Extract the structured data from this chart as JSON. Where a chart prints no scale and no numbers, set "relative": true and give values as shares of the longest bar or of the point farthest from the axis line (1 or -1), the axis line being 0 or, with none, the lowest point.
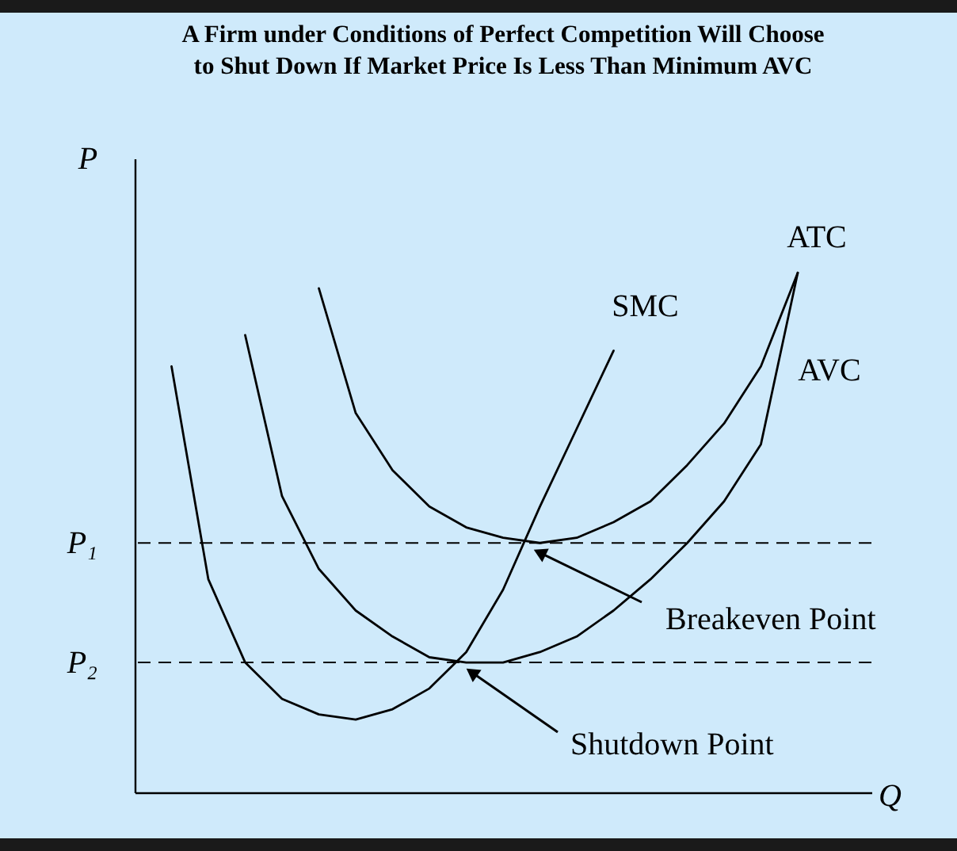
{
  "chart_data": {
    "type": "line",
    "title": "A Firm under Conditions of Perfect Competition Will Choose to Shut Down If Market Price Is Less Than Minimum AVC",
    "xlabel": "Q",
    "ylabel": "P",
    "relative": true,
    "grid": false,
    "marker": "none",
    "line_style": "solid",
    "categories": [
      null,
      null,
      null,
      null,
      null,
      null,
      null,
      null,
      null,
      null,
      null,
      null,
      null,
      null,
      null,
      null,
      null,
      null,
      null,
      null,
      null
    ],
    "series": [
      {
        "name": "SMC",
        "color": "#000000",
        "values": [
          null,
          0.82,
          0.41,
          0.25,
          0.18,
          0.15,
          0.14,
          0.16,
          0.2,
          0.27,
          0.39,
          0.55,
          0.7,
          0.85,
          null,
          null,
          null,
          null,
          null,
          null,
          null
        ]
      },
      {
        "name": "ATC",
        "color": "#000000",
        "values": [
          null,
          null,
          null,
          null,
          null,
          0.97,
          0.73,
          0.62,
          0.55,
          0.51,
          0.49,
          0.48,
          0.49,
          0.52,
          0.56,
          0.63,
          0.71,
          0.82,
          1.0,
          null,
          null
        ]
      },
      {
        "name": "AVC",
        "color": "#000000",
        "values": [
          null,
          null,
          null,
          0.88,
          0.57,
          0.43,
          0.35,
          0.3,
          0.26,
          0.25,
          0.25,
          0.27,
          0.3,
          0.35,
          0.41,
          0.48,
          0.56,
          0.67,
          1.0,
          null,
          null
        ]
      }
    ],
    "ref_lines": [
      {
        "axis": "y",
        "value": 0.48,
        "label": "P₁",
        "line_style": "dashed"
      },
      {
        "axis": "y",
        "value": 0.25,
        "label": "P₂",
        "line_style": "dashed"
      }
    ],
    "annotations": [
      "Breakeven Point",
      "Shutdown Point"
    ]
  }
}
